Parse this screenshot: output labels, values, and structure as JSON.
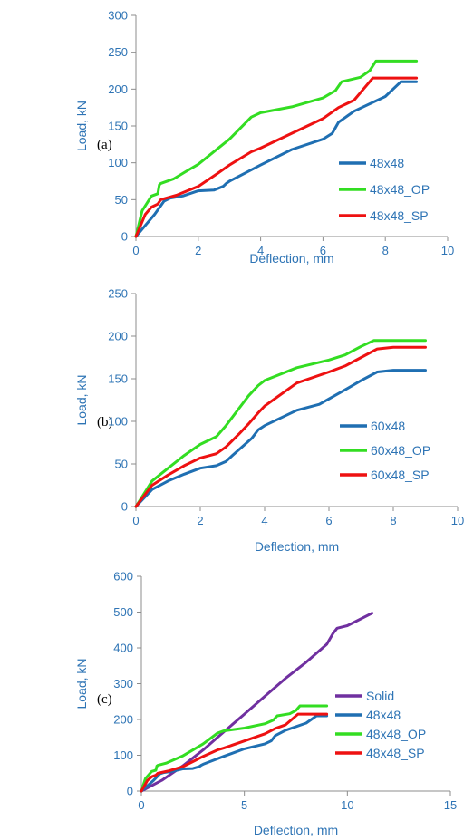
{
  "chart_data": [
    {
      "type": "line",
      "panel_label": "(a)",
      "xlabel": "Deflection, mm",
      "ylabel": "Load, kN",
      "xlim": [
        0,
        10
      ],
      "ylim": [
        0,
        300
      ],
      "xticks": [
        0,
        2,
        4,
        6,
        8,
        10
      ],
      "yticks": [
        0,
        50,
        100,
        150,
        200,
        250,
        300
      ],
      "legend_position": "right",
      "series": [
        {
          "name": "48x48",
          "color": "#1f6fb2",
          "x": [
            0,
            0.3,
            0.6,
            0.9,
            1.1,
            1.5,
            2.0,
            2.5,
            2.8,
            2.9,
            3.0,
            3.5,
            4.0,
            5.0,
            6.0,
            6.3,
            6.5,
            7.0,
            8.0,
            8.5,
            9.0
          ],
          "y": [
            0,
            15,
            30,
            48,
            52,
            55,
            62,
            63,
            68,
            72,
            75,
            86,
            97,
            118,
            132,
            140,
            155,
            170,
            190,
            210,
            210
          ]
        },
        {
          "name": "48x48_OP",
          "color": "#33dd22",
          "x": [
            0,
            0.2,
            0.5,
            0.7,
            0.75,
            0.8,
            1.2,
            1.6,
            2.0,
            3.0,
            3.7,
            4.0,
            5.0,
            6.0,
            6.4,
            6.6,
            7.2,
            7.5,
            7.7,
            8.5,
            9.0
          ],
          "y": [
            0,
            35,
            55,
            58,
            70,
            72,
            78,
            88,
            98,
            132,
            162,
            168,
            176,
            188,
            198,
            210,
            216,
            225,
            238,
            238,
            238
          ]
        },
        {
          "name": "48x48_SP",
          "color": "#ee1111",
          "x": [
            0,
            0.3,
            0.5,
            0.7,
            0.8,
            1.3,
            2.0,
            2.6,
            3.0,
            3.7,
            4.0,
            5.0,
            6.0,
            6.5,
            7.0,
            7.3,
            7.6,
            8.0,
            9.0
          ],
          "y": [
            0,
            30,
            40,
            44,
            50,
            56,
            68,
            85,
            97,
            115,
            120,
            140,
            160,
            175,
            185,
            200,
            215,
            215,
            215
          ]
        }
      ]
    },
    {
      "type": "line",
      "panel_label": "(b)",
      "xlabel": "Deflection, mm",
      "ylabel": "Load, kN",
      "xlim": [
        0,
        10
      ],
      "ylim": [
        0,
        250
      ],
      "xticks": [
        0,
        2,
        4,
        6,
        8,
        10
      ],
      "yticks": [
        0,
        50,
        100,
        150,
        200,
        250
      ],
      "legend_position": "right",
      "series": [
        {
          "name": "60x48",
          "color": "#1f6fb2",
          "x": [
            0,
            0.5,
            1.0,
            1.5,
            2.0,
            2.5,
            2.8,
            3.0,
            3.3,
            3.6,
            3.8,
            4.0,
            5.0,
            5.7,
            6.5,
            7.0,
            7.5,
            8.0,
            9.0
          ],
          "y": [
            0,
            20,
            30,
            38,
            45,
            48,
            53,
            60,
            70,
            80,
            90,
            95,
            113,
            120,
            137,
            148,
            158,
            160,
            160
          ]
        },
        {
          "name": "60x48_OP",
          "color": "#33dd22",
          "x": [
            0,
            0.5,
            1.0,
            1.5,
            2.0,
            2.5,
            2.8,
            3.2,
            3.5,
            3.8,
            4.0,
            5.0,
            6.0,
            6.5,
            7.0,
            7.4,
            8.0,
            9.0
          ],
          "y": [
            0,
            30,
            45,
            60,
            73,
            82,
            95,
            115,
            130,
            142,
            148,
            163,
            172,
            178,
            188,
            195,
            195,
            195
          ]
        },
        {
          "name": "60x48_SP",
          "color": "#ee1111",
          "x": [
            0,
            0.5,
            1.0,
            1.5,
            2.0,
            2.5,
            2.8,
            3.2,
            3.5,
            3.8,
            4.0,
            5.0,
            6.0,
            6.5,
            7.0,
            7.5,
            8.0,
            9.0
          ],
          "y": [
            0,
            25,
            37,
            48,
            57,
            62,
            70,
            85,
            97,
            110,
            118,
            145,
            158,
            165,
            175,
            185,
            187,
            187
          ]
        }
      ]
    },
    {
      "type": "line",
      "panel_label": "(c)",
      "xlabel": "Deflection, mm",
      "ylabel": "Load, kN",
      "xlim": [
        0,
        15
      ],
      "ylim": [
        0,
        600
      ],
      "xticks": [
        0,
        5,
        10,
        15
      ],
      "yticks": [
        0,
        100,
        200,
        300,
        400,
        500,
        600
      ],
      "legend_position": "right",
      "series": [
        {
          "name": "Solid",
          "color": "#7030a0",
          "x": [
            0,
            1,
            2,
            3,
            4,
            5,
            6,
            7,
            8,
            9,
            9.3,
            9.5,
            10,
            11.2
          ],
          "y": [
            0,
            30,
            70,
            115,
            165,
            215,
            265,
            315,
            360,
            410,
            440,
            455,
            462,
            497
          ]
        },
        {
          "name": "48x48",
          "color": "#1f6fb2",
          "x": [
            0,
            0.3,
            0.6,
            0.9,
            1.1,
            1.5,
            2.0,
            2.5,
            2.8,
            2.9,
            3.0,
            3.5,
            4.0,
            5.0,
            6.0,
            6.3,
            6.5,
            7.0,
            8.0,
            8.5,
            9.0
          ],
          "y": [
            0,
            15,
            30,
            48,
            52,
            55,
            62,
            63,
            68,
            72,
            75,
            86,
            97,
            118,
            132,
            140,
            155,
            170,
            190,
            210,
            210
          ]
        },
        {
          "name": "48x48_OP",
          "color": "#33dd22",
          "x": [
            0,
            0.2,
            0.5,
            0.7,
            0.75,
            0.8,
            1.2,
            1.6,
            2.0,
            3.0,
            3.7,
            4.0,
            5.0,
            6.0,
            6.4,
            6.6,
            7.2,
            7.5,
            7.7,
            8.5,
            9.0
          ],
          "y": [
            0,
            35,
            55,
            58,
            70,
            72,
            78,
            88,
            98,
            132,
            162,
            168,
            176,
            188,
            198,
            210,
            216,
            225,
            238,
            238,
            238
          ]
        },
        {
          "name": "48x48_SP",
          "color": "#ee1111",
          "x": [
            0,
            0.3,
            0.5,
            0.7,
            0.8,
            1.3,
            2.0,
            2.6,
            3.0,
            3.7,
            4.0,
            5.0,
            6.0,
            6.5,
            7.0,
            7.3,
            7.6,
            8.0,
            9.0
          ],
          "y": [
            0,
            30,
            40,
            44,
            50,
            56,
            68,
            85,
            97,
            115,
            120,
            140,
            160,
            175,
            185,
            200,
            215,
            215,
            215
          ]
        }
      ]
    }
  ]
}
